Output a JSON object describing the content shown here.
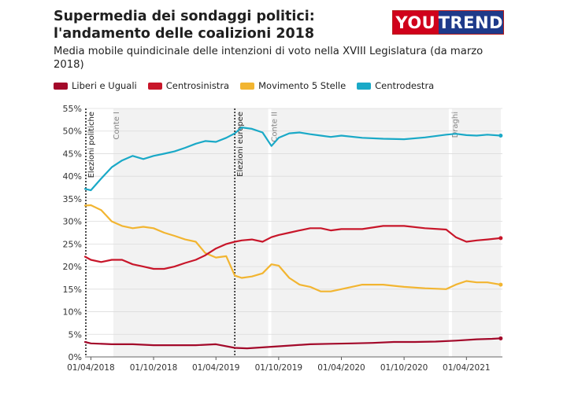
{
  "header": {
    "title": "Supermedia dei sondaggi politici: l'andamento delle coalizioni 2018",
    "subtitle": "Media mobile quindicinale delle intenzioni di voto nella XVIII Legislatura (da marzo 2018)",
    "logo_left": "YOU",
    "logo_right": "TREND"
  },
  "colors": {
    "Liberi e Uguali": "#a3092a",
    "Centrosinistra": "#c8162a",
    "Movimento 5 Stelle": "#f2b531",
    "Centrodestra": "#1aa9c7"
  },
  "legend": [
    {
      "label": "Liberi e Uguali",
      "color": "#a3092a"
    },
    {
      "label": "Centrosinistra",
      "color": "#c8162a"
    },
    {
      "label": "Movimento 5 Stelle",
      "color": "#f2b531"
    },
    {
      "label": "Centrodestra",
      "color": "#1aa9c7"
    }
  ],
  "chart_data": {
    "type": "line",
    "title": "Supermedia dei sondaggi politici: l'andamento delle coalizioni 2018",
    "xlabel": "",
    "ylabel": "",
    "x_range": [
      "2018-03-15",
      "2021-07-15"
    ],
    "ylim": [
      0,
      55
    ],
    "y_ticks": [
      0,
      5,
      10,
      15,
      20,
      25,
      30,
      35,
      40,
      45,
      50,
      55
    ],
    "y_tick_labels": [
      "0%",
      "5%",
      "10%",
      "15%",
      "20%",
      "25%",
      "30%",
      "35%",
      "40%",
      "45%",
      "50%",
      "55%"
    ],
    "x_ticks": [
      "2018-04-01",
      "2018-10-01",
      "2019-04-01",
      "2019-10-01",
      "2020-04-01",
      "2020-10-01",
      "2021-04-01"
    ],
    "x_tick_labels": [
      "01/04/2018",
      "01/10/2018",
      "01/04/2019",
      "01/10/2019",
      "01/04/2020",
      "01/10/2020",
      "01/04/2021"
    ],
    "grid": true,
    "legend_position": "top-left",
    "periods": [
      {
        "label": "Conte I",
        "start": "2018-06-01",
        "end": "2019-09-05"
      },
      {
        "label": "Conte II",
        "start": "2019-09-05",
        "end": "2021-02-13"
      },
      {
        "label": "Draghi",
        "start": "2021-02-13",
        "end": "2021-07-15"
      }
    ],
    "events": [
      {
        "label": "Elezioni politiche",
        "date": "2018-03-04"
      },
      {
        "label": "Elezioni europee",
        "date": "2019-05-26"
      }
    ],
    "series": [
      {
        "name": "Centrodestra",
        "points": [
          [
            "2018-03-15",
            37.2
          ],
          [
            "2018-04-01",
            36.9
          ],
          [
            "2018-05-01",
            39.5
          ],
          [
            "2018-06-01",
            42.0
          ],
          [
            "2018-07-01",
            43.5
          ],
          [
            "2018-08-01",
            44.5
          ],
          [
            "2018-09-01",
            43.8
          ],
          [
            "2018-10-01",
            44.5
          ],
          [
            "2018-11-01",
            45.0
          ],
          [
            "2018-12-01",
            45.5
          ],
          [
            "2019-01-01",
            46.3
          ],
          [
            "2019-02-01",
            47.2
          ],
          [
            "2019-03-01",
            47.8
          ],
          [
            "2019-04-01",
            47.6
          ],
          [
            "2019-05-01",
            48.5
          ],
          [
            "2019-05-26",
            49.5
          ],
          [
            "2019-06-15",
            50.8
          ],
          [
            "2019-07-15",
            50.5
          ],
          [
            "2019-08-15",
            49.7
          ],
          [
            "2019-09-10",
            46.7
          ],
          [
            "2019-10-01",
            48.5
          ],
          [
            "2019-11-01",
            49.5
          ],
          [
            "2019-12-01",
            49.7
          ],
          [
            "2020-01-01",
            49.3
          ],
          [
            "2020-02-01",
            49.0
          ],
          [
            "2020-03-01",
            48.7
          ],
          [
            "2020-04-01",
            49.0
          ],
          [
            "2020-06-01",
            48.5
          ],
          [
            "2020-08-01",
            48.3
          ],
          [
            "2020-10-01",
            48.2
          ],
          [
            "2020-12-01",
            48.6
          ],
          [
            "2021-02-01",
            49.2
          ],
          [
            "2021-03-01",
            49.4
          ],
          [
            "2021-04-01",
            49.1
          ],
          [
            "2021-05-01",
            49.0
          ],
          [
            "2021-06-01",
            49.2
          ],
          [
            "2021-07-10",
            49.0
          ]
        ]
      },
      {
        "name": "Movimento 5 Stelle",
        "points": [
          [
            "2018-03-15",
            33.5
          ],
          [
            "2018-04-01",
            33.6
          ],
          [
            "2018-05-01",
            32.5
          ],
          [
            "2018-06-01",
            30.0
          ],
          [
            "2018-07-01",
            29.0
          ],
          [
            "2018-08-01",
            28.5
          ],
          [
            "2018-09-01",
            28.8
          ],
          [
            "2018-10-01",
            28.5
          ],
          [
            "2018-11-01",
            27.5
          ],
          [
            "2018-12-01",
            26.8
          ],
          [
            "2019-01-01",
            26.0
          ],
          [
            "2019-02-01",
            25.5
          ],
          [
            "2019-03-01",
            23.0
          ],
          [
            "2019-04-01",
            22.0
          ],
          [
            "2019-05-01",
            22.3
          ],
          [
            "2019-05-26",
            18.0
          ],
          [
            "2019-06-15",
            17.5
          ],
          [
            "2019-07-15",
            17.8
          ],
          [
            "2019-08-15",
            18.5
          ],
          [
            "2019-09-10",
            20.5
          ],
          [
            "2019-10-01",
            20.2
          ],
          [
            "2019-11-01",
            17.5
          ],
          [
            "2019-12-01",
            16.0
          ],
          [
            "2020-01-01",
            15.5
          ],
          [
            "2020-02-01",
            14.5
          ],
          [
            "2020-03-01",
            14.5
          ],
          [
            "2020-04-01",
            15.0
          ],
          [
            "2020-06-01",
            16.0
          ],
          [
            "2020-08-01",
            16.0
          ],
          [
            "2020-10-01",
            15.5
          ],
          [
            "2020-12-01",
            15.2
          ],
          [
            "2021-02-01",
            15.0
          ],
          [
            "2021-03-01",
            16.0
          ],
          [
            "2021-04-01",
            16.8
          ],
          [
            "2021-05-01",
            16.5
          ],
          [
            "2021-06-01",
            16.5
          ],
          [
            "2021-07-10",
            16.0
          ]
        ]
      },
      {
        "name": "Centrosinistra",
        "points": [
          [
            "2018-03-15",
            22.2
          ],
          [
            "2018-04-01",
            21.5
          ],
          [
            "2018-05-01",
            21.0
          ],
          [
            "2018-06-01",
            21.5
          ],
          [
            "2018-07-01",
            21.5
          ],
          [
            "2018-08-01",
            20.5
          ],
          [
            "2018-09-01",
            20.0
          ],
          [
            "2018-10-01",
            19.5
          ],
          [
            "2018-11-01",
            19.5
          ],
          [
            "2018-12-01",
            20.0
          ],
          [
            "2019-01-01",
            20.8
          ],
          [
            "2019-02-01",
            21.5
          ],
          [
            "2019-03-01",
            22.5
          ],
          [
            "2019-04-01",
            24.0
          ],
          [
            "2019-05-01",
            25.0
          ],
          [
            "2019-05-26",
            25.5
          ],
          [
            "2019-06-15",
            25.8
          ],
          [
            "2019-07-15",
            26.0
          ],
          [
            "2019-08-15",
            25.5
          ],
          [
            "2019-09-10",
            26.5
          ],
          [
            "2019-10-01",
            27.0
          ],
          [
            "2019-11-01",
            27.5
          ],
          [
            "2019-12-01",
            28.0
          ],
          [
            "2020-01-01",
            28.5
          ],
          [
            "2020-02-01",
            28.5
          ],
          [
            "2020-03-01",
            28.0
          ],
          [
            "2020-04-01",
            28.3
          ],
          [
            "2020-06-01",
            28.3
          ],
          [
            "2020-08-01",
            29.0
          ],
          [
            "2020-10-01",
            29.0
          ],
          [
            "2020-12-01",
            28.5
          ],
          [
            "2021-02-01",
            28.2
          ],
          [
            "2021-03-01",
            26.5
          ],
          [
            "2021-04-01",
            25.5
          ],
          [
            "2021-05-01",
            25.8
          ],
          [
            "2021-06-01",
            26.0
          ],
          [
            "2021-07-10",
            26.3
          ]
        ]
      },
      {
        "name": "Liberi e Uguali",
        "points": [
          [
            "2018-03-15",
            3.3
          ],
          [
            "2018-04-01",
            3.0
          ],
          [
            "2018-06-01",
            2.8
          ],
          [
            "2018-08-01",
            2.8
          ],
          [
            "2018-10-01",
            2.6
          ],
          [
            "2018-12-01",
            2.6
          ],
          [
            "2019-02-01",
            2.6
          ],
          [
            "2019-04-01",
            2.8
          ],
          [
            "2019-05-26",
            2.0
          ],
          [
            "2019-07-01",
            1.9
          ],
          [
            "2019-09-01",
            2.2
          ],
          [
            "2019-11-01",
            2.5
          ],
          [
            "2020-01-01",
            2.8
          ],
          [
            "2020-03-01",
            2.9
          ],
          [
            "2020-05-01",
            3.0
          ],
          [
            "2020-07-01",
            3.1
          ],
          [
            "2020-09-01",
            3.3
          ],
          [
            "2020-11-01",
            3.3
          ],
          [
            "2021-01-01",
            3.4
          ],
          [
            "2021-03-01",
            3.6
          ],
          [
            "2021-05-01",
            3.9
          ],
          [
            "2021-06-15",
            4.0
          ],
          [
            "2021-07-10",
            4.1
          ]
        ]
      }
    ]
  }
}
